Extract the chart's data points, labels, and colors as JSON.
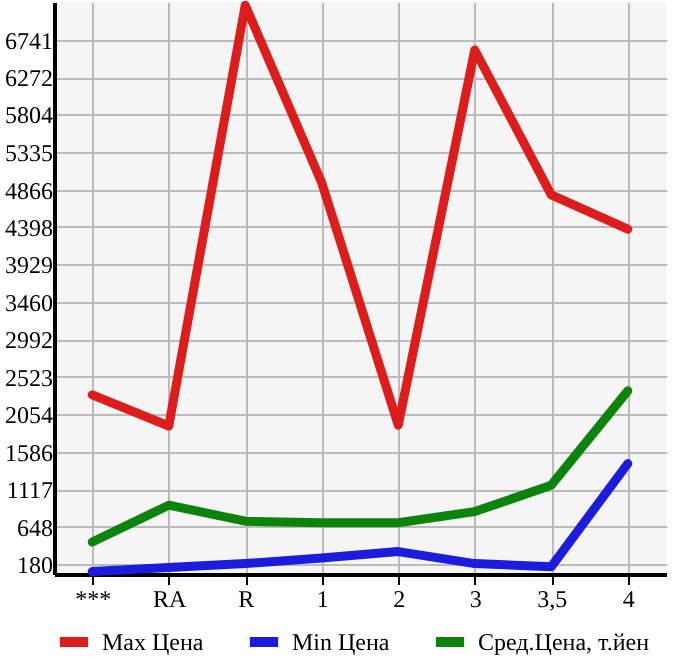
{
  "chart_data": {
    "type": "line",
    "categories": [
      "***",
      "RA",
      "R",
      "1",
      "2",
      "3",
      "3,5",
      "4"
    ],
    "series": [
      {
        "name": "Max Цена",
        "color": "#dd1c1c",
        "values": [
          2300,
          1910,
          7170,
          4950,
          1920,
          6610,
          4800,
          4370
        ]
      },
      {
        "name": "Min Цена",
        "color": "#1c1cdd",
        "values": [
          90,
          140,
          190,
          260,
          340,
          190,
          150,
          1440
        ]
      },
      {
        "name": "Сред.Цена, т.йен",
        "color": "#0c840c",
        "values": [
          460,
          920,
          720,
          700,
          700,
          840,
          1170,
          2350
        ]
      }
    ],
    "ylim": [
      60,
      7210
    ],
    "yticks": [
      180,
      648,
      1117,
      1586,
      2054,
      2523,
      2992,
      3460,
      3929,
      4398,
      4866,
      5335,
      5804,
      6272,
      6741
    ],
    "grid": true,
    "legend": "bottom",
    "marker": "none",
    "line_style": "solid"
  }
}
